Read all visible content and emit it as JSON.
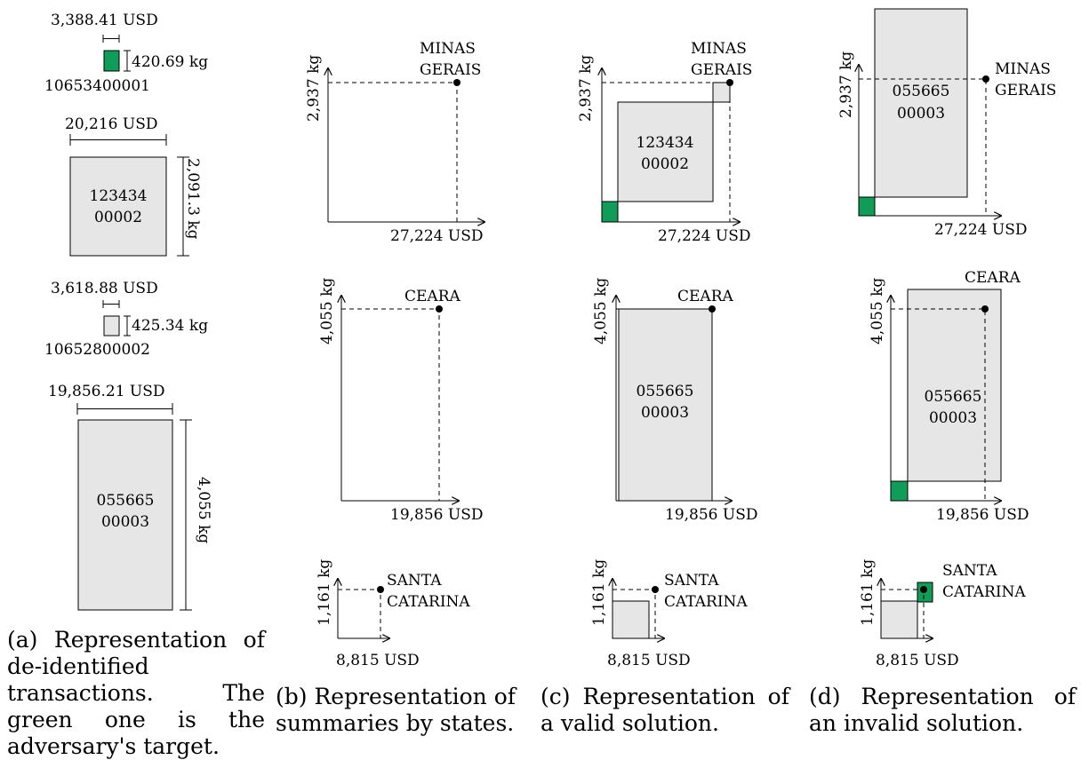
{
  "colors": {
    "target": "#0f9d58",
    "box": "#e6e6e6",
    "stroke": "#000000"
  },
  "transactions": {
    "t1": {
      "id": "10653400001",
      "width_label": "3,388.41 USD",
      "height_label": "420.69 kg",
      "target": true
    },
    "t2": {
      "line1": "123434",
      "line2": "00002",
      "width_label": "20,216 USD",
      "height_label": "2,091.3 kg"
    },
    "t3": {
      "id": "10652800002",
      "width_label": "3,618.88 USD",
      "height_label": "425.34 kg"
    },
    "t4": {
      "line1": "055665",
      "line2": "00003",
      "width_label": "19,856.21 USD",
      "height_label": "4,055 kg"
    }
  },
  "states": {
    "mg": {
      "name1": "MINAS",
      "name2": "GERAIS",
      "y_label": "2,937 kg",
      "x_label": "27,224 USD"
    },
    "ce": {
      "name1": "CEARA",
      "y_label": "4,055 kg",
      "x_label": "19,856 USD"
    },
    "sc": {
      "name1": "SANTA",
      "name2": "CATARINA",
      "y_label": "1,161 kg",
      "x_label": "8,815 USD"
    }
  },
  "boxes": {
    "c_mg": {
      "line1": "123434",
      "line2": "00002"
    },
    "c_ce": {
      "line1": "055665",
      "line2": "00003"
    },
    "d_mg": {
      "line1": "055665",
      "line2": "00003"
    },
    "d_ce": {
      "line1": "055665",
      "line2": "00003"
    }
  },
  "captions": {
    "a": "(a) Representation of de-identified transactions. The green one is the adversary's target.",
    "b": "(b) Representation of summaries by states.",
    "c": "(c) Representation of a valid solution.",
    "d": "(d) Representation of an invalid solution."
  }
}
